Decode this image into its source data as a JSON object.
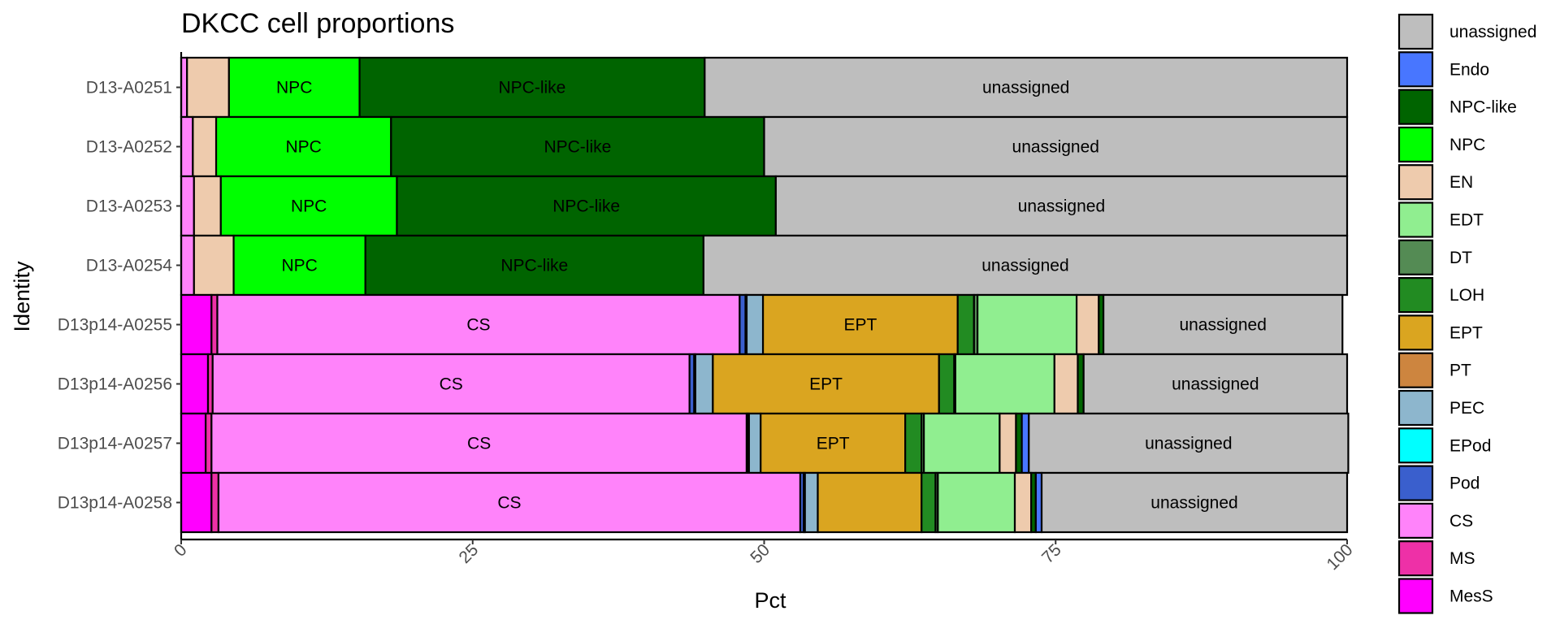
{
  "chart_data": {
    "type": "bar",
    "orientation": "horizontal",
    "stacked": true,
    "title": "DKCC cell proportions",
    "xlabel": "Pct",
    "ylabel": "Identity",
    "xlim": [
      0,
      100
    ],
    "xticks": [
      "0",
      "25",
      "50",
      "75",
      "100"
    ],
    "grid": false,
    "legend_position": "right",
    "categories": [
      "D13-A0251",
      "D13-A0252",
      "D13-A0253",
      "D13-A0254",
      "D13p14-A0255",
      "D13p14-A0256",
      "D13p14-A0257",
      "D13p14-A0258"
    ],
    "stack_order": [
      "MesS",
      "MS",
      "CS",
      "Pod",
      "EPod",
      "PEC",
      "PT",
      "EPT",
      "LOH",
      "DT",
      "EDT",
      "EN",
      "NPC",
      "NPC-like",
      "Endo",
      "unassigned"
    ],
    "series": [
      {
        "name": "MesS",
        "color": "#FF00FF",
        "values": [
          0,
          0,
          0,
          0,
          2.6,
          2.3,
          2.1,
          2.6
        ]
      },
      {
        "name": "MS",
        "color": "#EE30A7",
        "values": [
          0,
          0,
          0,
          0,
          0.5,
          0.4,
          0.5,
          0.6
        ]
      },
      {
        "name": "CS",
        "color": "#FF83FA",
        "values": [
          0.5,
          1.0,
          1.1,
          1.1,
          44.8,
          40.9,
          45.9,
          49.9
        ]
      },
      {
        "name": "Pod",
        "color": "#3A5FCD",
        "values": [
          0,
          0,
          0,
          0,
          0.5,
          0.4,
          0.1,
          0.3
        ]
      },
      {
        "name": "EPod",
        "color": "#00FFFF",
        "values": [
          0,
          0,
          0,
          0,
          0.1,
          0.1,
          0.1,
          0.1
        ]
      },
      {
        "name": "PEC",
        "color": "#8DB6CD",
        "values": [
          0,
          0,
          0,
          0,
          1.4,
          1.5,
          1.0,
          1.1
        ]
      },
      {
        "name": "PT",
        "color": "#CD853F",
        "values": [
          0,
          0,
          0,
          0,
          0,
          0,
          0,
          0
        ]
      },
      {
        "name": "EPT",
        "color": "#DAA520",
        "values": [
          0,
          0,
          0,
          0,
          16.7,
          19.4,
          12.4,
          8.9
        ]
      },
      {
        "name": "LOH",
        "color": "#228B22",
        "values": [
          0,
          0,
          0,
          0,
          1.4,
          1.3,
          1.4,
          1.2
        ]
      },
      {
        "name": "DT",
        "color": "#548B54",
        "values": [
          0,
          0,
          0,
          0,
          0.3,
          0.1,
          0.2,
          0.2
        ]
      },
      {
        "name": "EDT",
        "color": "#90EE90",
        "values": [
          0,
          0,
          0,
          0,
          8.5,
          8.5,
          6.5,
          6.6
        ]
      },
      {
        "name": "EN",
        "color": "#EECBAD",
        "values": [
          3.6,
          2.0,
          2.3,
          3.4,
          1.9,
          2.0,
          1.4,
          1.4
        ]
      },
      {
        "name": "NPC",
        "color": "#00FF00",
        "values": [
          11.2,
          15.0,
          15.1,
          11.3,
          0,
          0,
          0,
          0
        ]
      },
      {
        "name": "NPC-like",
        "color": "#006400",
        "values": [
          29.6,
          32.0,
          32.5,
          29.0,
          0.4,
          0.5,
          0.5,
          0.4
        ]
      },
      {
        "name": "Endo",
        "color": "#4876FF",
        "values": [
          0,
          0,
          0,
          0,
          0,
          0,
          0.6,
          0.5
        ]
      },
      {
        "name": "unassigned",
        "color": "#BEBEBE",
        "values": [
          55.1,
          50.0,
          49.0,
          55.2,
          20.5,
          22.6,
          27.4,
          26.2
        ]
      }
    ],
    "segment_labels": [
      {
        "category": "D13-A0251",
        "series": "NPC",
        "text": "NPC"
      },
      {
        "category": "D13-A0251",
        "series": "NPC-like",
        "text": "NPC-like"
      },
      {
        "category": "D13-A0251",
        "series": "unassigned",
        "text": "unassigned"
      },
      {
        "category": "D13-A0252",
        "series": "NPC",
        "text": "NPC"
      },
      {
        "category": "D13-A0252",
        "series": "NPC-like",
        "text": "NPC-like"
      },
      {
        "category": "D13-A0252",
        "series": "unassigned",
        "text": "unassigned"
      },
      {
        "category": "D13-A0253",
        "series": "NPC",
        "text": "NPC"
      },
      {
        "category": "D13-A0253",
        "series": "NPC-like",
        "text": "NPC-like"
      },
      {
        "category": "D13-A0253",
        "series": "unassigned",
        "text": "unassigned"
      },
      {
        "category": "D13-A0254",
        "series": "NPC",
        "text": "NPC"
      },
      {
        "category": "D13-A0254",
        "series": "NPC-like",
        "text": "NPC-like"
      },
      {
        "category": "D13-A0254",
        "series": "unassigned",
        "text": "unassigned"
      },
      {
        "category": "D13p14-A0255",
        "series": "CS",
        "text": "CS"
      },
      {
        "category": "D13p14-A0255",
        "series": "EPT",
        "text": "EPT"
      },
      {
        "category": "D13p14-A0255",
        "series": "unassigned",
        "text": "unassigned"
      },
      {
        "category": "D13p14-A0256",
        "series": "CS",
        "text": "CS"
      },
      {
        "category": "D13p14-A0256",
        "series": "EPT",
        "text": "EPT"
      },
      {
        "category": "D13p14-A0256",
        "series": "unassigned",
        "text": "unassigned"
      },
      {
        "category": "D13p14-A0257",
        "series": "CS",
        "text": "CS"
      },
      {
        "category": "D13p14-A0257",
        "series": "EPT",
        "text": "EPT"
      },
      {
        "category": "D13p14-A0257",
        "series": "unassigned",
        "text": "unassigned"
      },
      {
        "category": "D13p14-A0258",
        "series": "CS",
        "text": "CS"
      },
      {
        "category": "D13p14-A0258",
        "series": "unassigned",
        "text": "unassigned"
      }
    ],
    "legend_order": [
      "unassigned",
      "Endo",
      "NPC-like",
      "NPC",
      "EN",
      "EDT",
      "DT",
      "LOH",
      "EPT",
      "PT",
      "PEC",
      "EPod",
      "Pod",
      "CS",
      "MS",
      "MesS"
    ]
  }
}
